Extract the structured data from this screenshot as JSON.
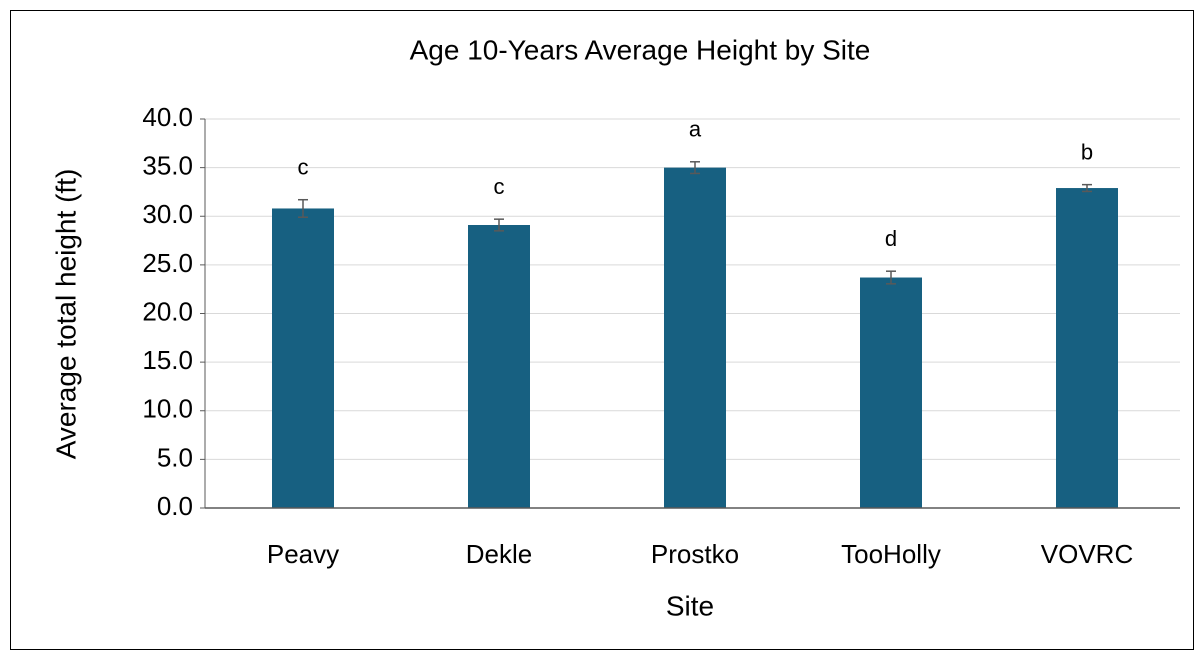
{
  "chart_data": {
    "type": "bar",
    "title": "Age 10-Years Average Height by Site",
    "x_label": "Site",
    "y_label": "Average total height (ft)",
    "categories": [
      "Peavy",
      "Dekle",
      "Prostko",
      "TooHolly",
      "VOVRC"
    ],
    "values": [
      30.8,
      29.1,
      35.0,
      23.7,
      32.9
    ],
    "errors": [
      0.9,
      0.6,
      0.6,
      0.65,
      0.35
    ],
    "annotations": [
      "c",
      "c",
      "a",
      "d",
      "b"
    ],
    "color": "#176081",
    "ylim": [
      0,
      40
    ],
    "yticks": [
      {
        "value": 0,
        "label": "0.0"
      },
      {
        "value": 5,
        "label": "5.0"
      },
      {
        "value": 10,
        "label": "10.0"
      },
      {
        "value": 15,
        "label": "15.0"
      },
      {
        "value": 20,
        "label": "20.0"
      },
      {
        "value": 25,
        "label": "25.0"
      },
      {
        "value": 30,
        "label": "30.0"
      },
      {
        "value": 35,
        "label": "35.0"
      },
      {
        "value": 40,
        "label": "40.0"
      }
    ],
    "grid": true
  }
}
